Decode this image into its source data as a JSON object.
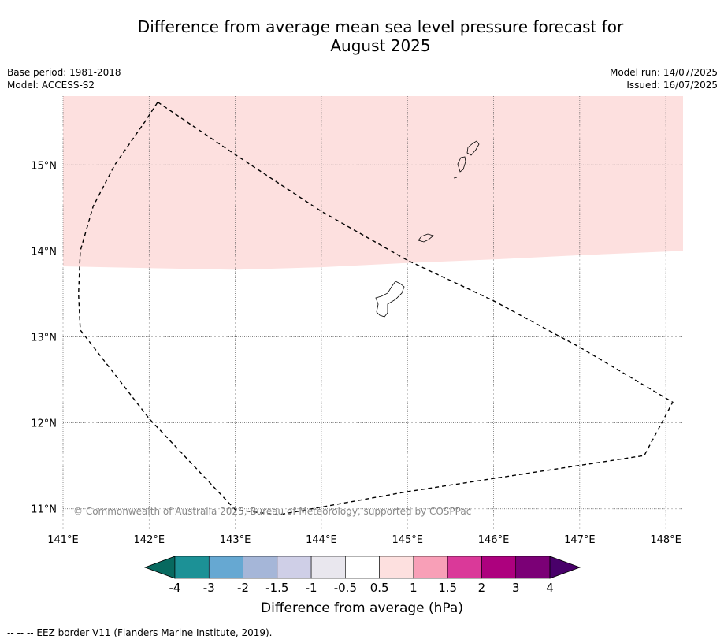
{
  "title_line1": "Difference from average mean sea level pressure forecast for",
  "title_line2": "August 2025",
  "meta": {
    "base_period": "Base period: 1981-2018",
    "model": "Model: ACCESS-S2",
    "model_run": "Model run: 14/07/2025",
    "issued": "Issued: 16/07/2025"
  },
  "map": {
    "lon_range": [
      141.0,
      148.2
    ],
    "lat_range": [
      10.75,
      15.8
    ],
    "lon_ticks": [
      141,
      142,
      143,
      144,
      145,
      146,
      147,
      148
    ],
    "lon_labels": [
      "141°E",
      "142°E",
      "143°E",
      "144°E",
      "145°E",
      "146°E",
      "147°E",
      "148°E"
    ],
    "lat_ticks": [
      11,
      12,
      13,
      14,
      15
    ],
    "lat_labels": [
      "11°N",
      "12°N",
      "13°N",
      "14°N",
      "15°N"
    ],
    "gridlines": "dotted",
    "anomaly_region": {
      "description_color": "#fde0df",
      "lower_boundary": [
        [
          141.0,
          13.82
        ],
        [
          142.0,
          13.8
        ],
        [
          143.0,
          13.78
        ],
        [
          144.0,
          13.81
        ],
        [
          145.0,
          13.86
        ],
        [
          146.0,
          13.9
        ],
        [
          147.0,
          13.95
        ],
        [
          148.2,
          14.0
        ]
      ]
    },
    "eez_border": [
      [
        142.1,
        15.73
      ],
      [
        143.0,
        15.12
      ],
      [
        144.0,
        14.46
      ],
      [
        145.0,
        13.89
      ],
      [
        146.0,
        13.42
      ],
      [
        147.0,
        12.88
      ],
      [
        148.08,
        12.24
      ],
      [
        147.75,
        11.62
      ],
      [
        145.0,
        11.2
      ],
      [
        143.5,
        10.93
      ],
      [
        143.0,
        10.99
      ],
      [
        142.0,
        12.05
      ],
      [
        141.2,
        13.08
      ],
      [
        141.18,
        13.5
      ],
      [
        141.2,
        14.0
      ],
      [
        141.35,
        14.52
      ],
      [
        141.6,
        15.0
      ],
      [
        141.95,
        15.5
      ],
      [
        142.1,
        15.73
      ]
    ],
    "copyright": "© Commonwealth of Australia 2025, Bureau of Meteorology, supported by COSPPac"
  },
  "colorbar": {
    "colors": [
      "#07695f",
      "#1c9196",
      "#66a8d2",
      "#a5b6d8",
      "#cfcfe7",
      "#e9e7ee",
      "#ffffff",
      "#fde0df",
      "#f89fb7",
      "#da3999",
      "#ad017e",
      "#7b0076",
      "#49006a"
    ],
    "tick_labels": [
      "-4",
      "-3",
      "-2",
      "-1.5",
      "-1",
      "-0.5",
      "0.5",
      "1",
      "1.5",
      "2",
      "3",
      "4"
    ],
    "label": "Difference from average (hPa)"
  },
  "footnote": "--  --  -- EEZ border V11 (Flanders Marine Institute, 2019)."
}
